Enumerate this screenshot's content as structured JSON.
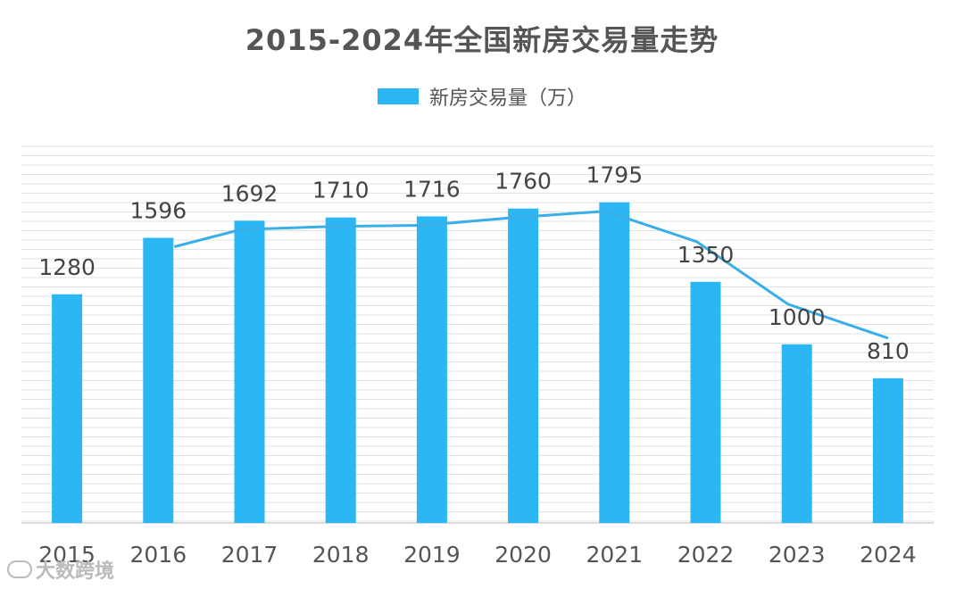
{
  "chart_data": {
    "type": "bar",
    "title": "2015-2024年全国新房交易量走势",
    "categories": [
      "2015",
      "2016",
      "2017",
      "2018",
      "2019",
      "2020",
      "2021",
      "2022",
      "2023",
      "2024"
    ],
    "series": [
      {
        "name": "新房交易量（万）",
        "values": [
          1280,
          1596,
          1692,
          1710,
          1716,
          1760,
          1795,
          1350,
          1000,
          810
        ]
      }
    ],
    "overlay_line": "trend line connecting values",
    "ylim": [
      0,
      2000
    ],
    "grid": true,
    "legend_position": "top",
    "colors": {
      "bar": "#2bb7f4",
      "line": "#3aaee6",
      "grid": "#e2e2e2",
      "text": "#555555"
    }
  },
  "watermark": {
    "text": "大数跨境",
    "logo_icon": "eye-glasses-logo-icon"
  }
}
